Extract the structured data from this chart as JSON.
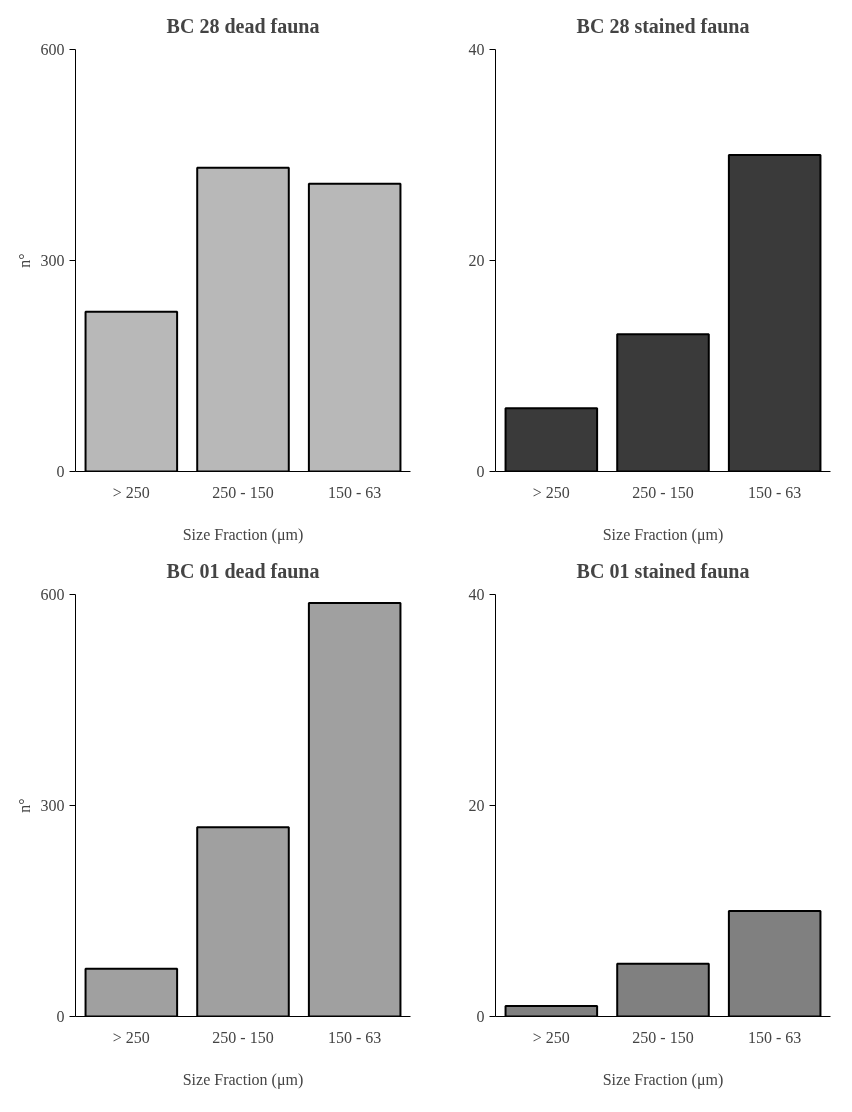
{
  "chart_data": [
    {
      "type": "bar",
      "title": "BC 28 dead fauna",
      "ylabel": "n°",
      "xlabel": "Size Fraction (μm)",
      "categories": [
        "> 250",
        "250 - 150",
        "150 - 63"
      ],
      "values": [
        227,
        432,
        409
      ],
      "color": "#b8b8b8",
      "ylim": [
        0,
        600
      ],
      "yticks": [
        0,
        300,
        600
      ],
      "grid": false
    },
    {
      "type": "bar",
      "title": "BC 28 stained fauna",
      "xlabel": "Size Fraction (μm)",
      "categories": [
        "> 250",
        "250 - 150",
        "150 - 63"
      ],
      "values": [
        6,
        13,
        30
      ],
      "color": "#3a3a3a",
      "ylim": [
        0,
        40
      ],
      "yticks": [
        0,
        20,
        40
      ],
      "grid": false
    },
    {
      "type": "bar",
      "title": "BC 01 dead fauna",
      "ylabel": "n°",
      "xlabel": "Size Fraction (μm)",
      "categories": [
        "> 250",
        "250 - 150",
        "150 - 63"
      ],
      "values": [
        68,
        269,
        588
      ],
      "color": "#a0a0a0",
      "ylim": [
        0,
        600
      ],
      "yticks": [
        0,
        300,
        600
      ],
      "grid": false
    },
    {
      "type": "bar",
      "title": "BC 01 stained fauna",
      "xlabel": "Size Fraction (μm)",
      "categories": [
        "> 250",
        "250 - 150",
        "150 - 63"
      ],
      "values": [
        1,
        5,
        10
      ],
      "color": "#808080",
      "ylim": [
        0,
        40
      ],
      "yticks": [
        0,
        20,
        40
      ],
      "grid": false
    }
  ]
}
